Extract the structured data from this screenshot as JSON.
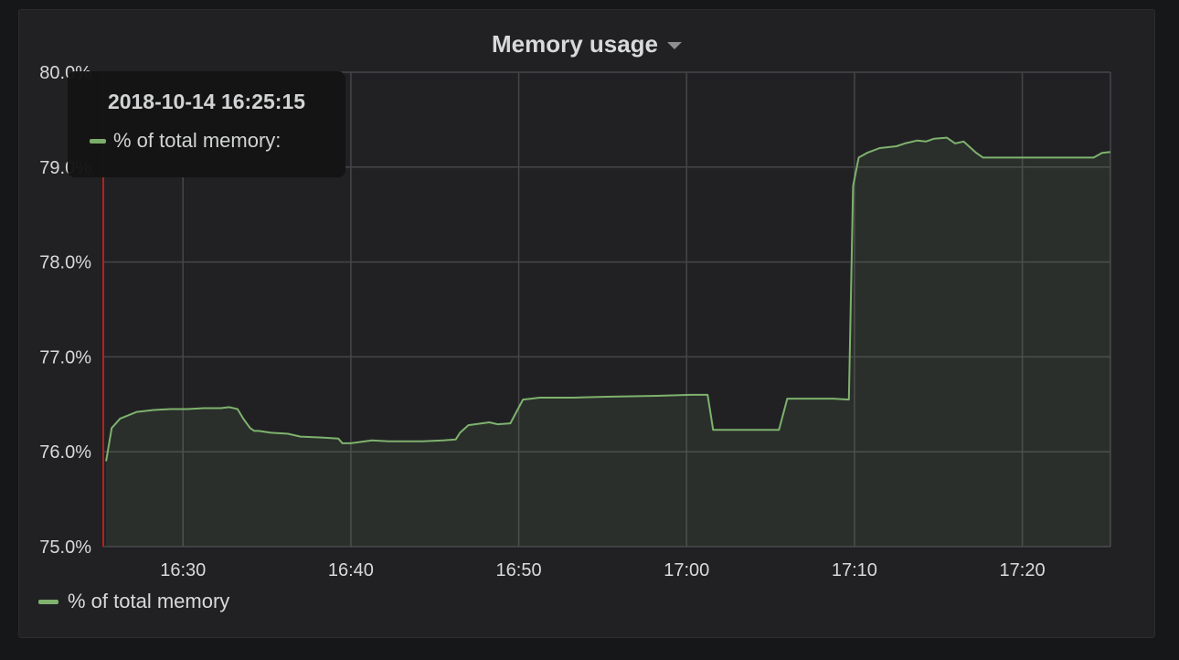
{
  "panel": {
    "title": "Memory usage"
  },
  "colors": {
    "series": "#7eb26d",
    "cursor": "#b5211c",
    "grid": "#464649",
    "background": "#212124"
  },
  "tooltip": {
    "time": "2018-10-14 16:25:15",
    "series_label": "% of total memory:"
  },
  "legend": {
    "items": [
      {
        "name": "% of total memory"
      }
    ]
  },
  "chart_data": {
    "type": "area",
    "title": "Memory usage",
    "xlabel": "",
    "ylabel": "",
    "xlim": [
      "16:25:15",
      "17:25:15"
    ],
    "ylim": [
      75.0,
      80.0
    ],
    "x_ticks": [
      "16:30",
      "16:40",
      "16:50",
      "17:00",
      "17:10",
      "17:20"
    ],
    "y_ticks": [
      "75.0%",
      "76.0%",
      "77.0%",
      "78.0%",
      "79.0%",
      "80.0%"
    ],
    "grid": true,
    "legend_position": "bottom-left",
    "series": [
      {
        "name": "% of total memory",
        "x": [
          "16:25:25",
          "16:25:45",
          "16:26:15",
          "16:27:15",
          "16:28:15",
          "16:29:15",
          "16:30:15",
          "16:31:15",
          "16:32:15",
          "16:32:45",
          "16:33:15",
          "16:33:35",
          "16:34:00",
          "16:34:15",
          "16:34:30",
          "16:35:15",
          "16:36:15",
          "16:37:00",
          "16:38:15",
          "16:39:15",
          "16:39:30",
          "16:40:00",
          "16:41:15",
          "16:42:15",
          "16:44:15",
          "16:45:30",
          "16:46:15",
          "16:46:30",
          "16:47:00",
          "16:48:15",
          "16:48:45",
          "16:49:30",
          "16:50:15",
          "16:50:45",
          "16:51:15",
          "16:53:15",
          "16:55:15",
          "16:58:15",
          "17:00:15",
          "17:01:15",
          "17:01:35",
          "17:05:00",
          "17:05:30",
          "17:06:00",
          "17:07:15",
          "17:08:45",
          "17:09:40",
          "17:09:55",
          "17:10:15",
          "17:10:45",
          "17:11:30",
          "17:12:30",
          "17:13:00",
          "17:13:45",
          "17:14:15",
          "17:14:45",
          "17:15:30",
          "17:16:00",
          "17:16:30",
          "17:17:15",
          "17:17:40",
          "17:18:15",
          "17:19:15",
          "17:20:15",
          "17:21:15",
          "17:22:15",
          "17:23:15",
          "17:24:15",
          "17:24:45",
          "17:25:15"
        ],
        "values": [
          75.9,
          76.25,
          76.35,
          76.42,
          76.44,
          76.45,
          76.45,
          76.46,
          76.46,
          76.47,
          76.45,
          76.35,
          76.25,
          76.22,
          76.22,
          76.2,
          76.19,
          76.16,
          76.15,
          76.14,
          76.09,
          76.09,
          76.12,
          76.11,
          76.11,
          76.12,
          76.13,
          76.2,
          76.28,
          76.31,
          76.29,
          76.3,
          76.55,
          76.56,
          76.57,
          76.57,
          76.58,
          76.59,
          76.6,
          76.6,
          76.23,
          76.23,
          76.23,
          76.56,
          76.56,
          76.56,
          76.55,
          78.8,
          79.1,
          79.15,
          79.2,
          79.22,
          79.25,
          79.28,
          79.27,
          79.3,
          79.31,
          79.25,
          79.27,
          79.15,
          79.1,
          79.1,
          79.1,
          79.1,
          79.1,
          79.1,
          79.1,
          79.1,
          79.15,
          79.16
        ]
      }
    ]
  }
}
